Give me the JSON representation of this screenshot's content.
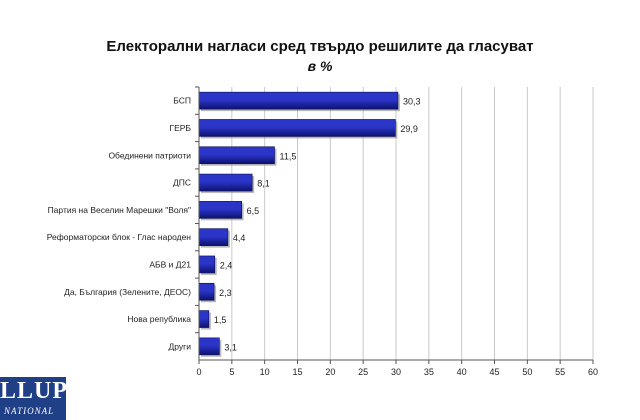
{
  "chart_data": {
    "type": "bar",
    "orientation": "horizontal",
    "title": "Електорални нагласи сред твърдо решилите да гласуват",
    "subtitle": "в %",
    "categories": [
      "БСП",
      "ГЕРБ",
      "Обединени патриоти",
      "ДПС",
      "Партия на Веселин Марешки \"Воля\"",
      "Реформаторски блок - Глас народен",
      "АБВ и Д21",
      "Да, България (Зелените, ДЕОС)",
      "Нова република",
      "Други"
    ],
    "values": [
      30.3,
      29.9,
      11.5,
      8.1,
      6.5,
      4.4,
      2.4,
      2.3,
      1.5,
      3.1
    ],
    "value_labels": [
      "30,3",
      "29,9",
      "11,5",
      "8,1",
      "6,5",
      "4,4",
      "2,4",
      "2,3",
      "1,5",
      "3,1"
    ],
    "xlim": [
      0,
      60
    ],
    "xticks": [
      "0",
      "5",
      "10",
      "15",
      "20",
      "25",
      "30",
      "35",
      "40",
      "45",
      "50",
      "55",
      "60"
    ],
    "grid": true,
    "legend": "none",
    "bar_color": "#2b35c8",
    "bar_color_dark": "#0c1270"
  },
  "logo": {
    "main": "LLUP",
    "sub": "NATIONAL",
    "color": "#1f3f86"
  }
}
